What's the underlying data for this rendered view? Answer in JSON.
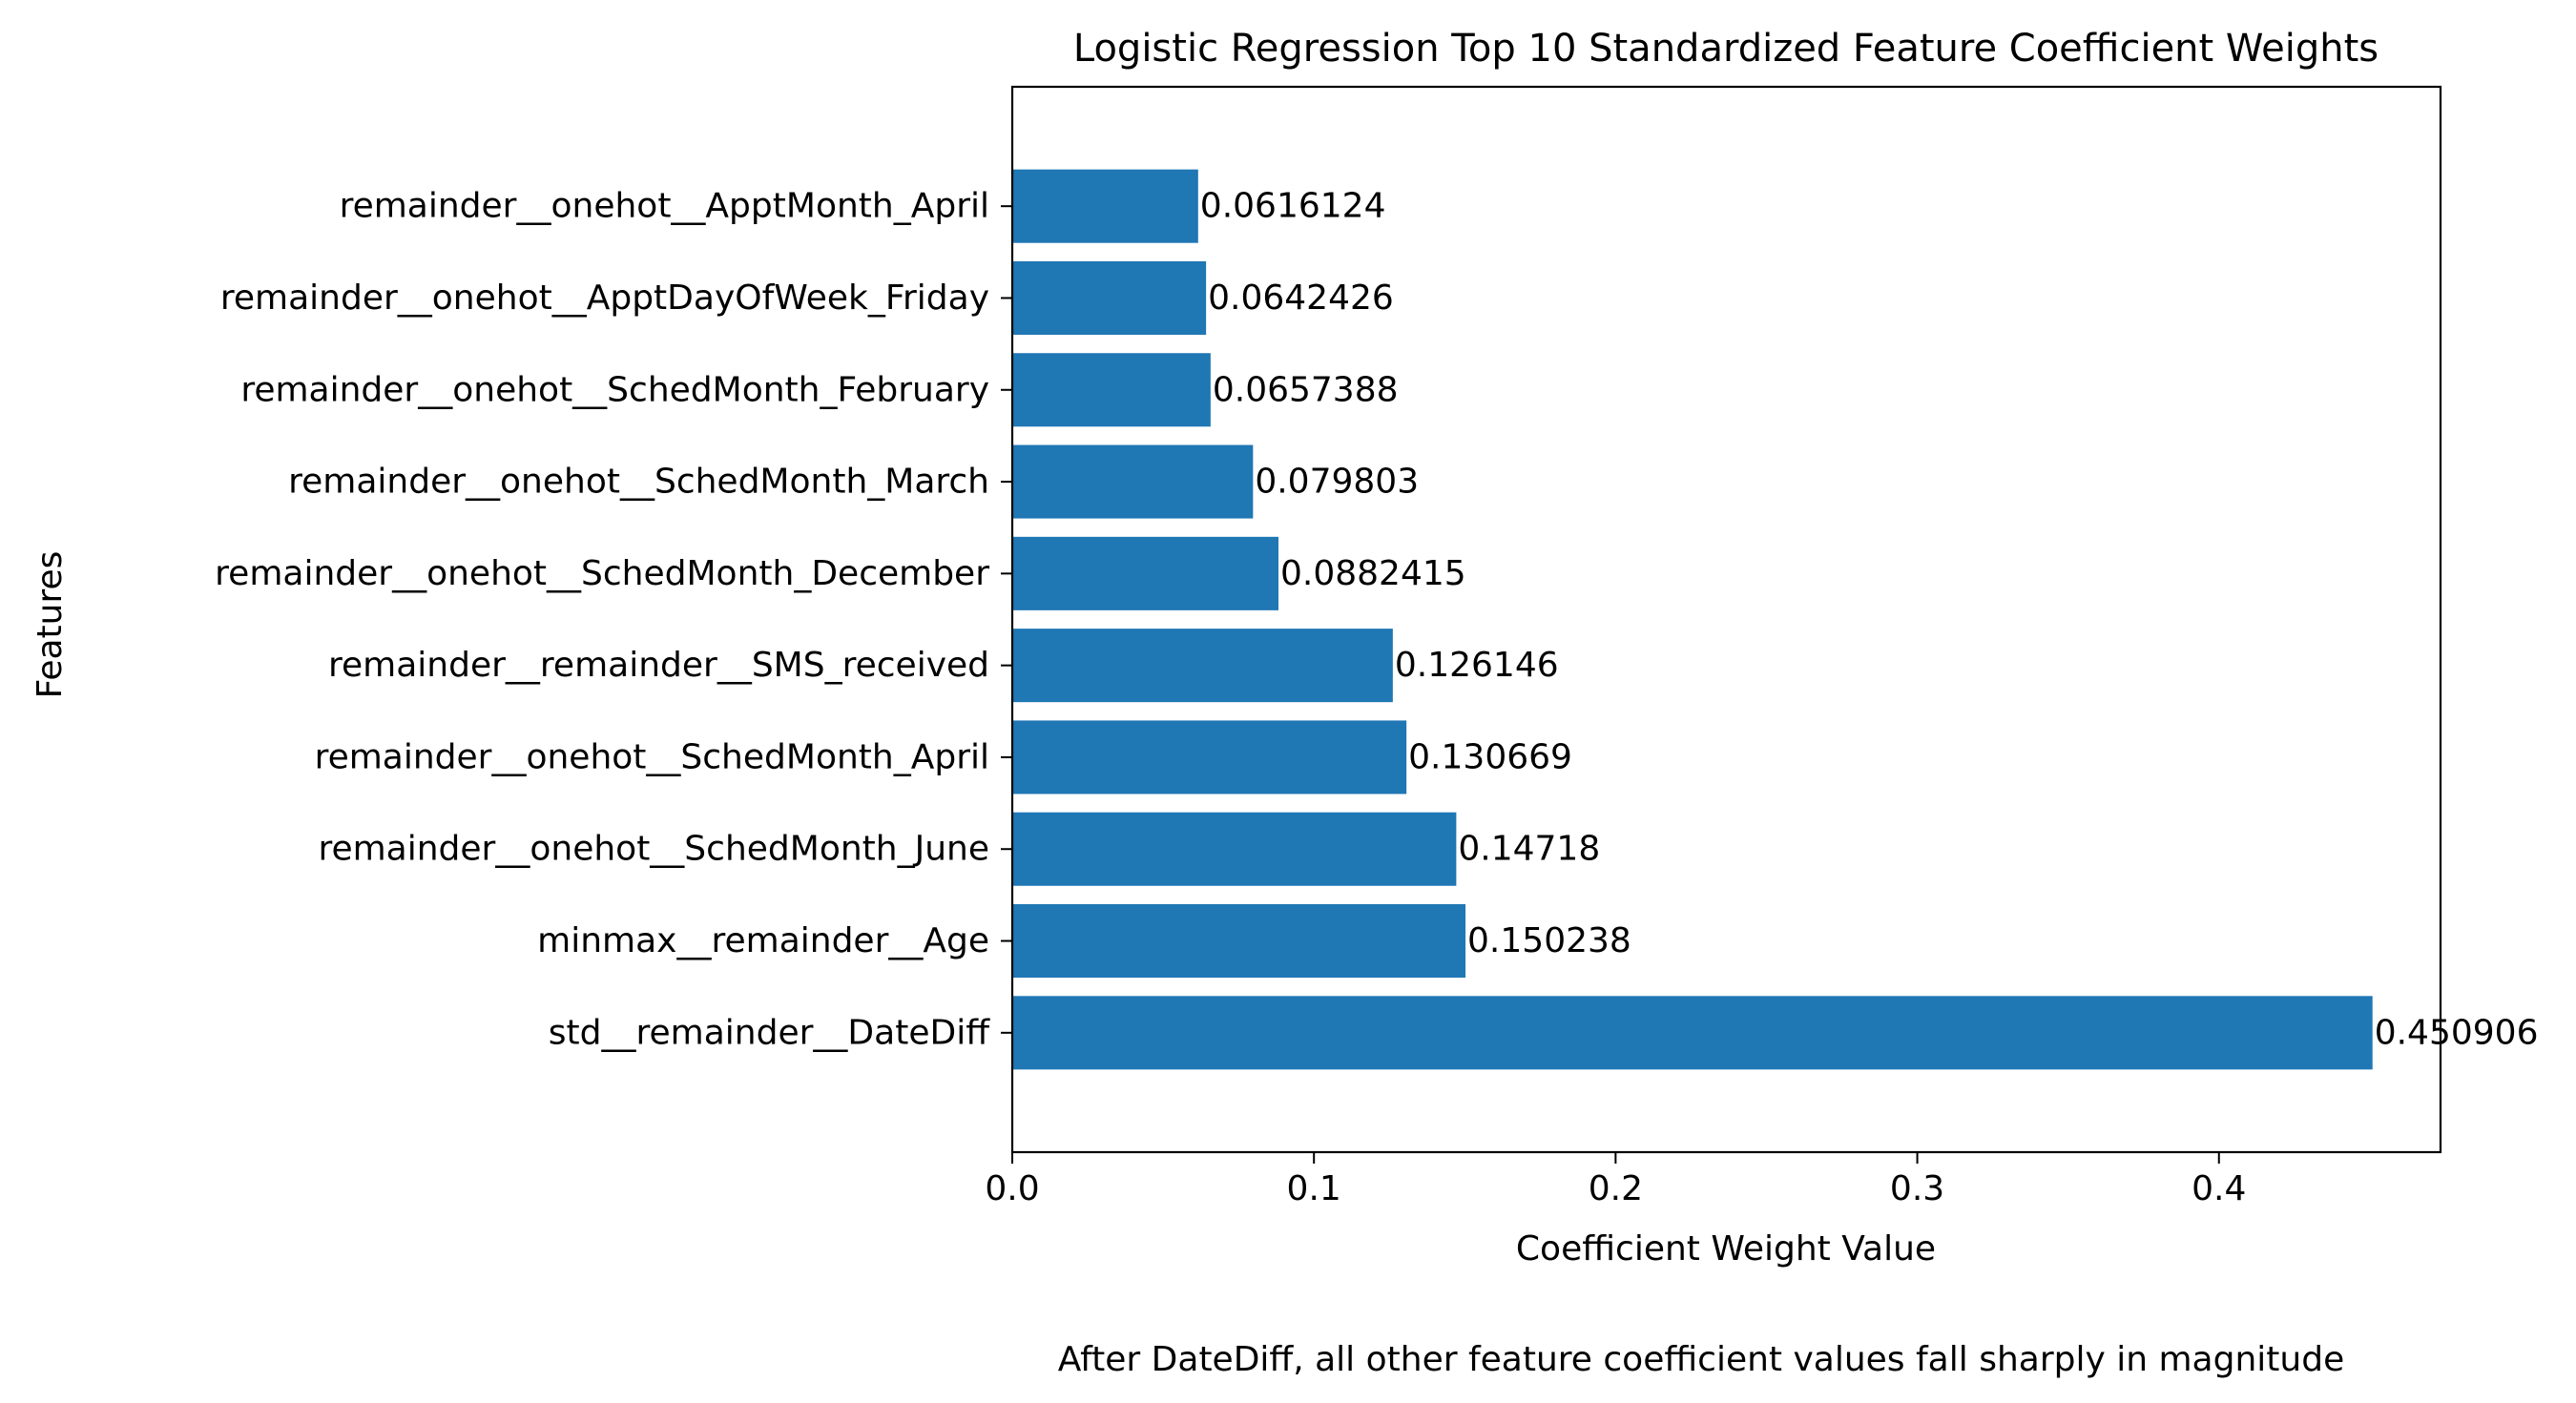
{
  "chart_data": {
    "type": "bar",
    "orientation": "horizontal",
    "title": "Logistic Regression Top 10 Standardized Feature Coefficient Weights",
    "xlabel": "Coefficient Weight Value",
    "ylabel": "Features",
    "caption": "After DateDiff, all other feature coefficient values fall sharply in magnitude",
    "xlim": [
      0,
      0.4734513
    ],
    "xticks": [
      0.0,
      0.1,
      0.2,
      0.3,
      0.4
    ],
    "xtick_labels": [
      "0.0",
      "0.1",
      "0.2",
      "0.3",
      "0.4"
    ],
    "grid": false,
    "bar_color": "#1f77b4",
    "categories": [
      "std__remainder__DateDiff",
      "minmax__remainder__Age",
      "remainder__onehot__SchedMonth_June",
      "remainder__onehot__SchedMonth_April",
      "remainder__remainder__SMS_received",
      "remainder__onehot__SchedMonth_December",
      "remainder__onehot__SchedMonth_March",
      "remainder__onehot__SchedMonth_February",
      "remainder__onehot__ApptDayOfWeek_Friday",
      "remainder__onehot__ApptMonth_April"
    ],
    "values": [
      0.450906,
      0.150238,
      0.14718,
      0.130669,
      0.126146,
      0.0882415,
      0.079803,
      0.0657388,
      0.0642426,
      0.0616124
    ],
    "value_labels": [
      "0.450906",
      "0.150238",
      "0.14718",
      "0.130669",
      "0.126146",
      "0.0882415",
      "0.079803",
      "0.0657388",
      "0.0642426",
      "0.0616124"
    ]
  }
}
